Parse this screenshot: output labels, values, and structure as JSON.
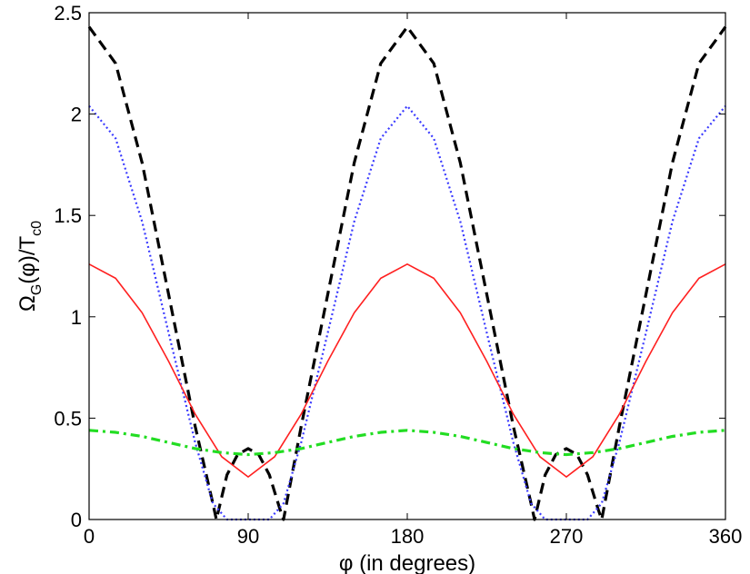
{
  "chart_data": {
    "type": "line",
    "xlabel_symbol": "φ",
    "xlabel_rest": " (in degrees)",
    "ylabel": {
      "omega": "Ω",
      "sub_g": "G",
      "mid": "(φ)/T",
      "sub_c0": "c0"
    },
    "xlim": [
      0,
      360
    ],
    "ylim": [
      0,
      2.5
    ],
    "xticks": [
      0,
      90,
      180,
      270,
      360
    ],
    "xtick_labels": [
      "0",
      "90",
      "180",
      "270",
      "360"
    ],
    "yticks": [
      0,
      0.5,
      1,
      1.5,
      2,
      2.5
    ],
    "ytick_labels": [
      "0",
      "0.5",
      "1",
      "1.5",
      "2",
      "2.5"
    ],
    "grid": false,
    "series": [
      {
        "style": "dashed",
        "color": "#000000",
        "x": [
          0,
          15,
          30,
          45,
          60,
          70,
          72,
          78,
          84,
          90,
          96,
          102,
          108,
          110,
          120,
          135,
          150,
          165,
          180,
          195,
          210,
          225,
          240,
          250,
          252,
          258,
          264,
          270,
          276,
          282,
          288,
          290,
          300,
          315,
          330,
          345,
          360
        ],
        "y": [
          2.43,
          2.25,
          1.76,
          1.11,
          0.46,
          0.08,
          0.0,
          0.22,
          0.32,
          0.35,
          0.32,
          0.22,
          0.05,
          0.0,
          0.46,
          1.11,
          1.76,
          2.25,
          2.43,
          2.25,
          1.76,
          1.11,
          0.46,
          0.08,
          0.0,
          0.22,
          0.32,
          0.35,
          0.32,
          0.22,
          0.05,
          0.0,
          0.46,
          1.11,
          1.76,
          2.25,
          2.43
        ]
      },
      {
        "style": "dotted",
        "color": "#3a3aff",
        "x": [
          0,
          15,
          30,
          45,
          60,
          70,
          78,
          90,
          102,
          110,
          120,
          135,
          150,
          165,
          180,
          195,
          210,
          225,
          240,
          250,
          258,
          270,
          282,
          290,
          300,
          315,
          330,
          345,
          360
        ],
        "y": [
          2.04,
          1.88,
          1.47,
          0.92,
          0.38,
          0.08,
          0.0,
          0.0,
          0.0,
          0.08,
          0.38,
          0.92,
          1.47,
          1.88,
          2.04,
          1.88,
          1.47,
          0.92,
          0.38,
          0.08,
          0.0,
          0.0,
          0.0,
          0.08,
          0.38,
          0.92,
          1.47,
          1.88,
          2.04
        ]
      },
      {
        "style": "solid",
        "color": "#ff2020",
        "x": [
          0,
          15,
          30,
          45,
          60,
          75,
          90,
          105,
          120,
          135,
          150,
          165,
          180,
          195,
          210,
          225,
          240,
          255,
          270,
          285,
          300,
          315,
          330,
          345,
          360
        ],
        "y": [
          1.26,
          1.19,
          1.02,
          0.78,
          0.52,
          0.31,
          0.21,
          0.31,
          0.52,
          0.78,
          1.02,
          1.19,
          1.26,
          1.19,
          1.02,
          0.78,
          0.52,
          0.31,
          0.21,
          0.31,
          0.52,
          0.78,
          1.02,
          1.19,
          1.26
        ]
      },
      {
        "style": "dashdot",
        "color": "#22dd22",
        "x": [
          0,
          15,
          30,
          45,
          60,
          75,
          90,
          105,
          120,
          135,
          150,
          165,
          180,
          195,
          210,
          225,
          240,
          255,
          270,
          285,
          300,
          315,
          330,
          345,
          360
        ],
        "y": [
          0.44,
          0.43,
          0.41,
          0.38,
          0.35,
          0.33,
          0.32,
          0.33,
          0.35,
          0.38,
          0.41,
          0.43,
          0.44,
          0.43,
          0.41,
          0.38,
          0.35,
          0.33,
          0.32,
          0.33,
          0.35,
          0.38,
          0.41,
          0.43,
          0.44
        ]
      }
    ]
  }
}
